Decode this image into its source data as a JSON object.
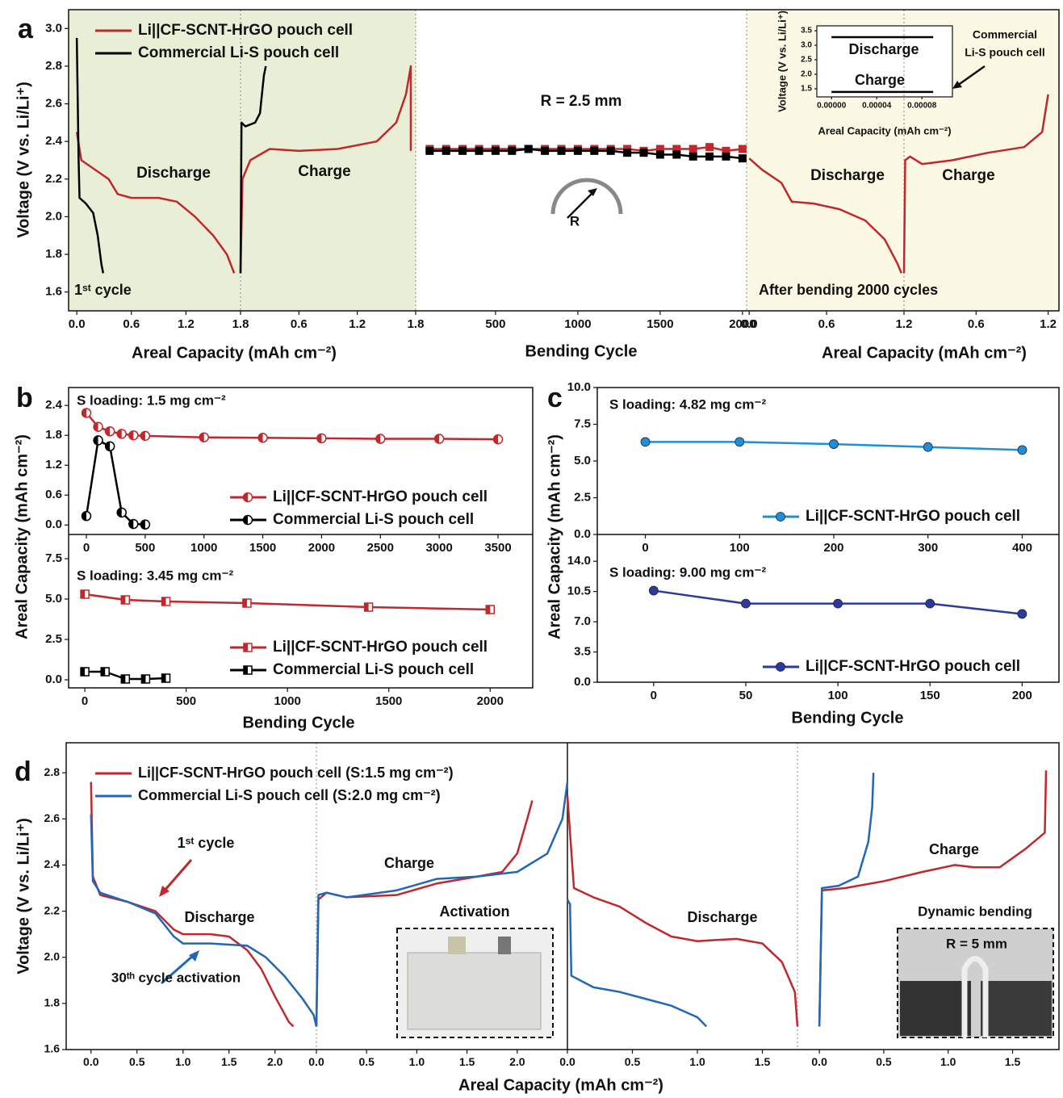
{
  "chart_data": [
    {
      "type": "line",
      "panel_label": "a",
      "xlim": [
        -0.09,
        1.8
      ],
      "ylim": [
        1.5,
        3.1
      ],
      "xticks": [
        {
          "value": 0,
          "label": "0.0"
        },
        0.6,
        1.2,
        1.8
      ],
      "yticks": [
        1.6,
        1.8,
        {
          "value": 2,
          "label": "2.0"
        },
        2.2,
        2.4,
        2.6,
        2.8,
        {
          "value": 3,
          "label": "3.0"
        }
      ],
      "xlabel": "Areal Capacity (mAh cm⁻²)",
      "ylabel": "Voltage (V vs. Li/Li⁺)",
      "annotations": [
        "1ˢᵗ cycle",
        "Discharge"
      ],
      "series": [
        {
          "name": "Li||CF-SCNT-HrGO pouch cell",
          "color": "#c0282d",
          "x": [
            0,
            0.05,
            0.2,
            0.35,
            0.45,
            0.6,
            0.9,
            1.1,
            1.3,
            1.5,
            1.65,
            1.73
          ],
          "values": [
            2.45,
            2.3,
            2.25,
            2.2,
            2.12,
            2.1,
            2.1,
            2.08,
            2.0,
            1.9,
            1.8,
            1.7
          ]
        },
        {
          "name": "Commercial Li-S pouch cell",
          "color": "#000000",
          "x": [
            0,
            0.02,
            0.03,
            0.1,
            0.18,
            0.23,
            0.27,
            0.29
          ],
          "values": [
            2.95,
            2.3,
            2.1,
            2.07,
            2.02,
            1.9,
            1.75,
            1.7
          ]
        }
      ]
    },
    {
      "type": "line",
      "xlim": [
        0,
        1.8
      ],
      "ylim": [
        1.5,
        3.1
      ],
      "xticks": [
        0.6,
        1.2,
        1.8
      ],
      "annotations": [
        "Charge"
      ],
      "series": [
        {
          "color": "#c0282d",
          "x": [
            0,
            0.02,
            0.1,
            0.3,
            0.6,
            1.0,
            1.4,
            1.6,
            1.7,
            1.75,
            1.75
          ],
          "values": [
            1.7,
            2.2,
            2.3,
            2.36,
            2.35,
            2.36,
            2.4,
            2.5,
            2.65,
            2.8,
            2.35
          ]
        },
        {
          "color": "#000000",
          "x": [
            0,
            0.01,
            0.05,
            0.15,
            0.2,
            0.24,
            0.26
          ],
          "values": [
            1.7,
            2.5,
            2.48,
            2.5,
            2.55,
            2.75,
            2.8
          ]
        }
      ]
    },
    {
      "type": "line",
      "xlim": [
        15,
        2025
      ],
      "ylim": [
        1.5,
        3.1
      ],
      "xticks": [
        500,
        1000,
        1500,
        2000
      ],
      "xlabel": "Bending Cycle",
      "annotations": [
        "R = 2.5 mm",
        "R"
      ],
      "series": [
        {
          "color": "#c0282d",
          "marker": "square",
          "x": [
            100,
            200,
            300,
            400,
            500,
            600,
            700,
            800,
            900,
            1000,
            1100,
            1200,
            1300,
            1400,
            1500,
            1600,
            1700,
            1800,
            1900,
            2000
          ],
          "values": [
            2.36,
            2.36,
            2.36,
            2.36,
            2.36,
            2.36,
            2.36,
            2.36,
            2.36,
            2.36,
            2.36,
            2.36,
            2.36,
            2.35,
            2.36,
            2.36,
            2.36,
            2.37,
            2.35,
            2.36
          ]
        },
        {
          "color": "#000000",
          "marker": "square",
          "x": [
            100,
            200,
            300,
            400,
            500,
            600,
            700,
            800,
            900,
            1000,
            1100,
            1200,
            1300,
            1400,
            1500,
            1600,
            1700,
            1800,
            1900,
            2000
          ],
          "values": [
            2.35,
            2.35,
            2.35,
            2.35,
            2.35,
            2.35,
            2.36,
            2.35,
            2.35,
            2.35,
            2.35,
            2.35,
            2.34,
            2.34,
            2.33,
            2.33,
            2.32,
            2.32,
            2.32,
            2.31
          ]
        }
      ]
    },
    {
      "type": "line",
      "xlim": [
        -0.02,
        1.2
      ],
      "ylim": [
        1.5,
        3.1
      ],
      "xticks": [
        {
          "value": 0,
          "label": "0.0"
        },
        0.6,
        1.2
      ],
      "xlabel": "Areal Capacity (mAh cm⁻²)",
      "annotations": [
        "After bending 2000 cycles",
        "Discharge"
      ],
      "series": [
        {
          "color": "#c0282d",
          "x": [
            0,
            0.1,
            0.25,
            0.33,
            0.5,
            0.7,
            0.9,
            1.05,
            1.15,
            1.18
          ],
          "values": [
            2.31,
            2.25,
            2.18,
            2.08,
            2.07,
            2.04,
            1.98,
            1.88,
            1.75,
            1.7
          ]
        }
      ]
    },
    {
      "type": "line",
      "xlim": [
        0,
        1.29
      ],
      "ylim": [
        1.5,
        3.1
      ],
      "xticks": [
        0.6,
        1.2
      ],
      "annotations": [
        "Charge"
      ],
      "series": [
        {
          "color": "#c0282d",
          "x": [
            0,
            0.01,
            0.05,
            0.15,
            0.4,
            0.7,
            1.0,
            1.15,
            1.2
          ],
          "values": [
            1.7,
            2.3,
            2.32,
            2.28,
            2.3,
            2.34,
            2.37,
            2.45,
            2.65
          ]
        }
      ]
    },
    {
      "type": "line",
      "xlim": [
        -1.3e-05,
        0.000107
      ],
      "ylim": [
        1.22,
        3.67
      ],
      "xticks": [
        {
          "value": 0,
          "label": "0.00000"
        },
        {
          "value": 4e-05,
          "label": "0.00004"
        },
        {
          "value": 8e-05,
          "label": "0.00008"
        }
      ],
      "yticks": [
        1.5,
        {
          "value": 2,
          "label": "2.0"
        },
        2.5,
        {
          "value": 3,
          "label": "3.0"
        },
        3.5
      ],
      "xlabel": "Areal Capacity (mAh cm⁻²)",
      "ylabel": "Voltage (V vs. Li/Li⁺)",
      "annotations": [
        "Discharge",
        "Charge",
        "Commercial",
        "Li-S pouch cell"
      ],
      "series": [
        {
          "color": "#000000",
          "x": [
            0,
            9e-05
          ],
          "values": [
            3.28,
            3.28
          ]
        },
        {
          "color": "#000000",
          "x": [
            0,
            9e-05
          ],
          "values": [
            1.39,
            1.39
          ]
        }
      ]
    },
    {
      "type": "line",
      "panel_label": "b",
      "xlim": [
        -151,
        3795
      ],
      "ylim": [
        -0.19,
        2.76
      ],
      "xticks": [
        0,
        500,
        1000,
        1500,
        2000,
        2500,
        3000,
        3500
      ],
      "yticks": [
        {
          "value": 0,
          "label": "0.0"
        },
        0.6,
        1.2,
        1.8,
        2.4
      ],
      "ylabel": "Areal Capacity (mAh cm⁻²)",
      "annotations": [
        "S loading: 1.5 mg cm⁻²"
      ],
      "series": [
        {
          "name": "Li||CF-SCNT-HrGO pouch cell",
          "color": "#c0282d",
          "marker": "half-circle",
          "x": [
            0,
            100,
            200,
            300,
            400,
            500,
            1000,
            1500,
            2000,
            2500,
            3000,
            3500
          ],
          "values": [
            2.25,
            1.97,
            1.88,
            1.83,
            1.8,
            1.79,
            1.76,
            1.75,
            1.74,
            1.73,
            1.73,
            1.72
          ]
        },
        {
          "name": "Commercial Li-S pouch cell",
          "color": "#000000",
          "marker": "half-circle",
          "x": [
            0,
            100,
            200,
            300,
            400,
            500
          ],
          "values": [
            0.18,
            1.7,
            1.58,
            0.25,
            0.02,
            0.01
          ]
        }
      ]
    },
    {
      "type": "line",
      "xlim": [
        -80,
        2210
      ],
      "ylim": [
        -0.5,
        9
      ],
      "xticks": [
        0,
        500,
        1000,
        1500,
        2000
      ],
      "yticks": [
        {
          "value": 0,
          "label": "0.0"
        },
        2.5,
        {
          "value": 5,
          "label": "5.0"
        },
        7.5
      ],
      "xlabel": "Bending Cycle",
      "annotations": [
        "S loading: 3.45 mg cm⁻²"
      ],
      "series": [
        {
          "name": "Li||CF-SCNT-HrGO pouch cell",
          "color": "#c0282d",
          "marker": "half-square",
          "x": [
            0,
            200,
            400,
            800,
            1400,
            2000
          ],
          "values": [
            5.3,
            4.95,
            4.85,
            4.75,
            4.5,
            4.35
          ]
        },
        {
          "name": "Commercial Li-S pouch cell",
          "color": "#000000",
          "marker": "half-square",
          "x": [
            0,
            100,
            200,
            300,
            400
          ],
          "values": [
            0.5,
            0.5,
            0.05,
            0.05,
            0.1
          ]
        }
      ]
    },
    {
      "type": "line",
      "panel_label": "c",
      "xlim": [
        -51,
        439
      ],
      "ylim": [
        0,
        10
      ],
      "xticks": [
        0,
        100,
        200,
        300,
        400
      ],
      "yticks": [
        {
          "value": 0,
          "label": "0.0"
        },
        2.5,
        {
          "value": 5,
          "label": "5.0"
        },
        7.5,
        {
          "value": 10,
          "label": "10.0"
        }
      ],
      "ylabel": "Areal Capacity (mAh cm⁻²)",
      "annotations": [
        "S loading: 4.82 mg cm⁻²"
      ],
      "series": [
        {
          "name": "Li||CF-SCNT-HrGO pouch cell",
          "color": "#1d8fd6",
          "marker": "circle",
          "x": [
            0,
            100,
            200,
            300,
            400
          ],
          "values": [
            6.3,
            6.3,
            6.15,
            5.95,
            5.75
          ]
        }
      ]
    },
    {
      "type": "line",
      "xlim": [
        -30.6,
        220
      ],
      "ylim": [
        0,
        17.1
      ],
      "xticks": [
        0,
        50,
        100,
        150,
        200
      ],
      "yticks": [
        {
          "value": 0,
          "label": "0.0"
        },
        3.5,
        {
          "value": 7,
          "label": "7.0"
        },
        10.5,
        {
          "value": 14,
          "label": "14.0"
        }
      ],
      "xlabel": "Bending Cycle",
      "annotations": [
        "S loading: 9.00 mg cm⁻²"
      ],
      "series": [
        {
          "name": "Li||CF-SCNT-HrGO pouch cell",
          "color": "#2b3a9c",
          "marker": "circle",
          "x": [
            0,
            50,
            100,
            150,
            200
          ],
          "values": [
            10.6,
            9.1,
            9.1,
            9.1,
            7.9
          ]
        }
      ]
    },
    {
      "type": "line",
      "panel_label": "d",
      "xlim": [
        -0.27,
        2.45
      ],
      "ylim": [
        1.6,
        2.93
      ],
      "xticks": [
        {
          "value": 0,
          "label": "0.0"
        },
        0.5,
        {
          "value": 1,
          "label": "1.0"
        },
        1.5,
        {
          "value": 2,
          "label": "2.0"
        }
      ],
      "yticks": [
        1.6,
        1.8,
        {
          "value": 2,
          "label": "2.0"
        },
        2.2,
        2.4,
        2.6,
        2.8
      ],
      "ylabel": "Voltage (V vs. Li/Li⁺)",
      "annotations": [
        "1ˢᵗ cycle",
        "Discharge",
        "30ᵗʰ cycle activation"
      ],
      "series": [
        {
          "name": "Li||CF-SCNT-HrGO pouch cell (S:1.5 mg cm⁻²)",
          "color": "#c0282d",
          "x": [
            0,
            0.02,
            0.1,
            0.4,
            0.7,
            0.9,
            1.0,
            1.3,
            1.5,
            1.7,
            1.85,
            2.0,
            2.15,
            2.2
          ],
          "values": [
            2.76,
            2.35,
            2.27,
            2.24,
            2.2,
            2.12,
            2.1,
            2.1,
            2.09,
            2.03,
            1.95,
            1.83,
            1.72,
            1.7
          ]
        },
        {
          "name": "Commercial Li-S pouch cell (S:2.0 mg cm⁻²)",
          "color": "#2266b8",
          "x": [
            0,
            0.02,
            0.1,
            0.4,
            0.7,
            0.9,
            1.0,
            1.3,
            1.7,
            1.9,
            2.1,
            2.3,
            2.42,
            2.45
          ],
          "values": [
            2.62,
            2.33,
            2.28,
            2.24,
            2.19,
            2.09,
            2.06,
            2.06,
            2.05,
            2.0,
            1.92,
            1.82,
            1.75,
            1.7
          ]
        }
      ]
    },
    {
      "type": "line",
      "xlim": [
        0,
        2.5
      ],
      "ylim": [
        1.6,
        2.93
      ],
      "xticks": [
        {
          "value": 0,
          "label": "0.0"
        },
        0.5,
        {
          "value": 1,
          "label": "1.0"
        },
        1.5,
        {
          "value": 2,
          "label": "2.0"
        }
      ],
      "annotations": [
        "Charge",
        "Activation"
      ],
      "series": [
        {
          "color": "#c0282d",
          "x": [
            0,
            0.02,
            0.1,
            0.3,
            0.8,
            1.2,
            1.6,
            1.85,
            2.0,
            2.1,
            2.15
          ],
          "values": [
            1.7,
            2.25,
            2.28,
            2.26,
            2.27,
            2.32,
            2.35,
            2.37,
            2.45,
            2.6,
            2.68
          ]
        },
        {
          "color": "#2266b8",
          "x": [
            0,
            0.02,
            0.1,
            0.3,
            0.8,
            1.2,
            1.6,
            2.0,
            2.3,
            2.45,
            2.5
          ],
          "values": [
            1.7,
            2.27,
            2.28,
            2.26,
            2.29,
            2.34,
            2.35,
            2.37,
            2.45,
            2.6,
            2.76
          ]
        }
      ]
    },
    {
      "type": "line",
      "xlim": [
        0,
        1.77
      ],
      "ylim": [
        1.6,
        2.93
      ],
      "xticks": [
        {
          "value": 0,
          "label": "0.0"
        },
        0.5,
        {
          "value": 1,
          "label": "1.0"
        },
        1.5
      ],
      "xlabel": "Areal Capacity (mAh cm⁻²)",
      "annotations": [
        "Discharge"
      ],
      "series": [
        {
          "color": "#c0282d",
          "x": [
            0,
            0.05,
            0.2,
            0.4,
            0.6,
            0.8,
            1.0,
            1.3,
            1.5,
            1.65,
            1.75,
            1.77
          ],
          "values": [
            2.7,
            2.3,
            2.26,
            2.22,
            2.15,
            2.09,
            2.07,
            2.08,
            2.06,
            1.98,
            1.85,
            1.7
          ]
        },
        {
          "color": "#2266b8",
          "x": [
            0,
            0.02,
            0.03,
            0.2,
            0.4,
            0.6,
            0.8,
            1.0,
            1.07
          ],
          "values": [
            2.25,
            2.23,
            1.92,
            1.87,
            1.85,
            1.82,
            1.79,
            1.74,
            1.7
          ]
        }
      ]
    },
    {
      "type": "line",
      "xlim": [
        -0.17,
        1.86
      ],
      "ylim": [
        1.6,
        2.93
      ],
      "xticks": [
        {
          "value": 0,
          "label": "0.0"
        },
        0.5,
        {
          "value": 1,
          "label": "1.0"
        },
        1.5
      ],
      "annotations": [
        "Charge",
        "Dynamic bending",
        "R = 5 mm"
      ],
      "series": [
        {
          "color": "#c0282d",
          "x": [
            0,
            0.02,
            0.2,
            0.5,
            0.8,
            1.05,
            1.2,
            1.4,
            1.6,
            1.75,
            1.76
          ],
          "values": [
            1.7,
            2.29,
            2.3,
            2.33,
            2.37,
            2.4,
            2.39,
            2.39,
            2.47,
            2.54,
            2.81
          ]
        },
        {
          "color": "#2266b8",
          "x": [
            0,
            0.02,
            0.15,
            0.3,
            0.38,
            0.41,
            0.42
          ],
          "values": [
            1.7,
            2.3,
            2.31,
            2.35,
            2.5,
            2.65,
            2.8
          ]
        }
      ]
    }
  ]
}
